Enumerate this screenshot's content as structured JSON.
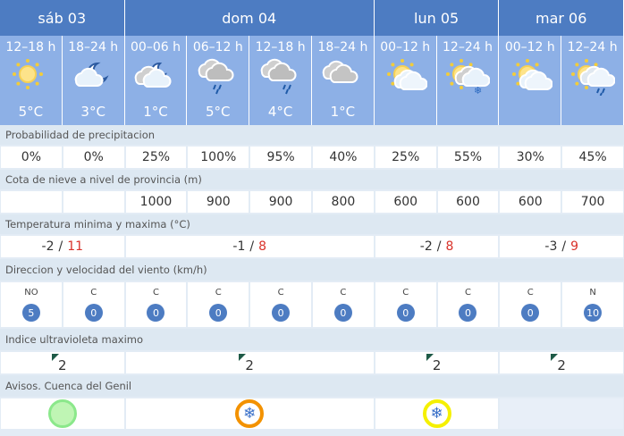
{
  "days": [
    {
      "label": "sáb 03",
      "span": 2
    },
    {
      "label": "dom 04",
      "span": 4
    },
    {
      "label": "lun 05",
      "span": 2
    },
    {
      "label": "mar 06",
      "span": 2
    }
  ],
  "periods": [
    {
      "time": "12–18 h",
      "icon": "sun-icon",
      "temp": "5°C"
    },
    {
      "time": "18–24 h",
      "icon": "moon-cloud-icon",
      "temp": "3°C"
    },
    {
      "time": "00–06 h",
      "icon": "moon-clouds-icon",
      "temp": "1°C"
    },
    {
      "time": "06–12 h",
      "icon": "heavy-rain-icon",
      "temp": "5°C"
    },
    {
      "time": "12–18 h",
      "icon": "rain-icon",
      "temp": "4°C"
    },
    {
      "time": "18–24 h",
      "icon": "clouds-icon",
      "temp": "1°C"
    },
    {
      "time": "00–12 h",
      "icon": "sun-clouds-icon",
      "temp": ""
    },
    {
      "time": "12–24 h",
      "icon": "snow-clouds-icon",
      "temp": ""
    },
    {
      "time": "00–12 h",
      "icon": "sun-clouds-icon",
      "temp": ""
    },
    {
      "time": "12–24 h",
      "icon": "sun-rain-icon",
      "temp": ""
    }
  ],
  "precip": {
    "label": "Probabilidad de precipitacion",
    "values": [
      "0%",
      "0%",
      "25%",
      "100%",
      "95%",
      "40%",
      "25%",
      "55%",
      "30%",
      "45%"
    ]
  },
  "snow": {
    "label": "Cota de nieve a nivel de provincia (m)",
    "values": [
      "",
      "",
      "1000",
      "900",
      "900",
      "800",
      "600",
      "600",
      "600",
      "700"
    ]
  },
  "temps": {
    "label": "Temperatura minima y maxima (°C)",
    "days": [
      {
        "min": "-2",
        "max": "11"
      },
      {
        "min": "-1",
        "max": "8"
      },
      {
        "min": "-2",
        "max": "8"
      },
      {
        "min": "-3",
        "max": "9"
      }
    ],
    "sep": "/"
  },
  "wind": {
    "label": "Direccion y velocidad del viento (km/h)",
    "values": [
      {
        "dir": "NO",
        "speed": "5"
      },
      {
        "dir": "C",
        "speed": "0"
      },
      {
        "dir": "C",
        "speed": "0"
      },
      {
        "dir": "C",
        "speed": "0"
      },
      {
        "dir": "C",
        "speed": "0"
      },
      {
        "dir": "C",
        "speed": "0"
      },
      {
        "dir": "C",
        "speed": "0"
      },
      {
        "dir": "C",
        "speed": "0"
      },
      {
        "dir": "C",
        "speed": "0"
      },
      {
        "dir": "N",
        "speed": "10"
      }
    ]
  },
  "uv": {
    "label": "Indice ultravioleta maximo",
    "values": [
      "2",
      "2",
      "2",
      "2"
    ]
  },
  "alerts": {
    "label": "Avisos. Cuenca del Genil",
    "values": [
      {
        "level": "green",
        "color": "#8be88b"
      },
      {
        "level": "orange",
        "color": "#f39200",
        "icon": "snowflake-icon"
      },
      {
        "level": "yellow",
        "color": "#f5f000",
        "icon": "snowflake-icon"
      },
      {
        "level": "none"
      }
    ]
  },
  "colors": {
    "header": "#4d7cc2",
    "period": "#8db0e6",
    "label_bg": "#dde8f2",
    "max_temp": "#d9322a"
  }
}
